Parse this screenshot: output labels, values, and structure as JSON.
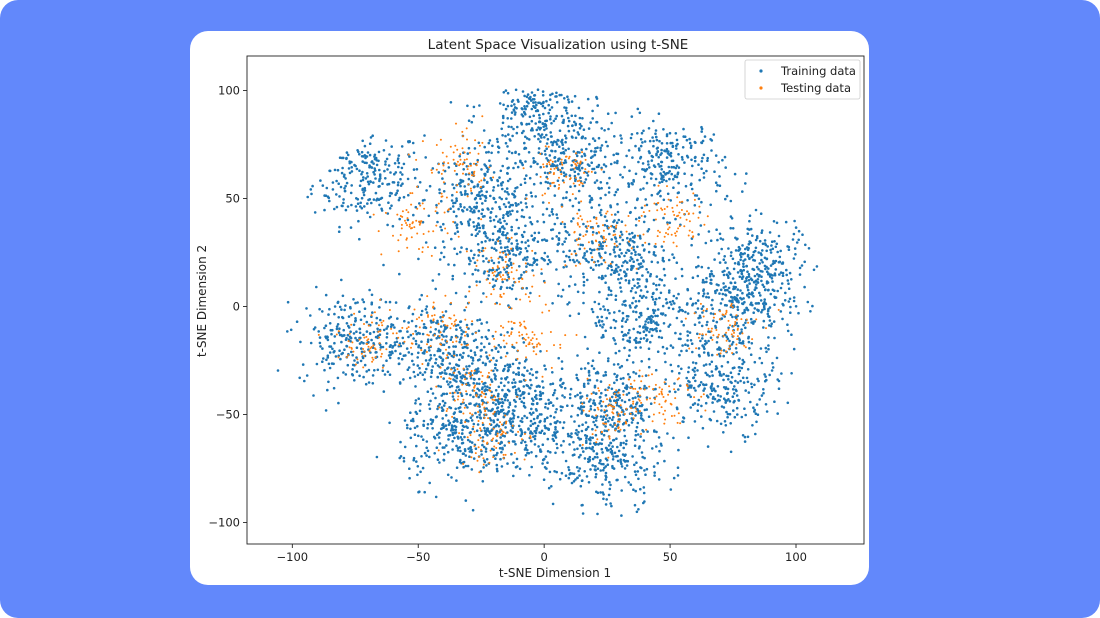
{
  "chart_data": {
    "type": "scatter",
    "title": "Latent Space Visualization using t-SNE",
    "xlabel": "t-SNE Dimension 1",
    "ylabel": "t-SNE Dimension 2",
    "xlim": [
      -118,
      127
    ],
    "ylim": [
      -110,
      116
    ],
    "xticks": [
      -100,
      -50,
      0,
      50,
      100
    ],
    "xtick_labels": [
      "−100",
      "−50",
      "0",
      "50",
      "100"
    ],
    "yticks": [
      -100,
      -50,
      0,
      50,
      100
    ],
    "ytick_labels": [
      "−100",
      "−50",
      "0",
      "50",
      "100"
    ],
    "legend_position": "top-right",
    "grid": false,
    "series": [
      {
        "name": "Training data",
        "color": "#1f77b4",
        "cluster_centers": [
          [
            -70,
            60
          ],
          [
            -25,
            50
          ],
          [
            -5,
            92
          ],
          [
            10,
            67
          ],
          [
            50,
            65
          ],
          [
            -15,
            25
          ],
          [
            28,
            25
          ],
          [
            -75,
            -15
          ],
          [
            -42,
            -20
          ],
          [
            -20,
            -35
          ],
          [
            -35,
            -60
          ],
          [
            -8,
            -55
          ],
          [
            25,
            -45
          ],
          [
            25,
            -72
          ],
          [
            72,
            -35
          ],
          [
            75,
            0
          ],
          [
            85,
            20
          ],
          [
            40,
            -5
          ]
        ]
      },
      {
        "name": "Testing data",
        "color": "#ff7f0e",
        "cluster_centers": [
          [
            -50,
            38
          ],
          [
            -33,
            65
          ],
          [
            8,
            62
          ],
          [
            20,
            32
          ],
          [
            -15,
            15
          ],
          [
            -68,
            -15
          ],
          [
            -40,
            -10
          ],
          [
            -28,
            -40
          ],
          [
            -20,
            -60
          ],
          [
            25,
            -50
          ],
          [
            45,
            -40
          ],
          [
            70,
            -10
          ],
          [
            50,
            40
          ],
          [
            -5,
            -15
          ]
        ]
      }
    ]
  }
}
